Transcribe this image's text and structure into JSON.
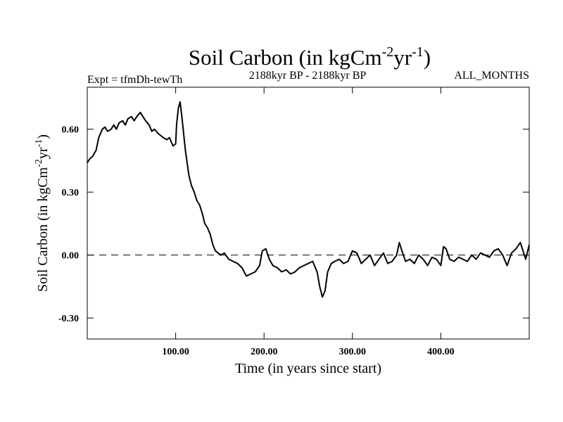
{
  "chart_data": {
    "type": "line",
    "title": "Soil Carbon (in kgCm",
    "title_sup1": "-2",
    "title_mid": "yr",
    "title_sup2": "-1",
    "title_end": ")",
    "subtitle_left": "Expt = tfmDh-tewTh",
    "subtitle_center": "2188kyr BP - 2188kyr BP",
    "subtitle_right": "ALL_MONTHS",
    "xlabel": "Time (in years since start)",
    "ylabel": "Soil Carbon (in kgCm",
    "ylabel_sup1": "-2",
    "ylabel_mid": "yr",
    "ylabel_sup2": "-1",
    "ylabel_end": ")",
    "xlim": [
      0,
      500
    ],
    "ylim": [
      -0.4,
      0.8
    ],
    "x_ticks": [
      {
        "value": 100,
        "label": "100.00"
      },
      {
        "value": 200,
        "label": "200.00"
      },
      {
        "value": 300,
        "label": "300.00"
      },
      {
        "value": 400,
        "label": "400.00"
      }
    ],
    "y_ticks": [
      {
        "value": 0.6,
        "label": "0.60"
      },
      {
        "value": 0.3,
        "label": "0.30"
      },
      {
        "value": 0.0,
        "label": "0.00"
      },
      {
        "value": -0.3,
        "label": "-0.30"
      }
    ],
    "reference_line": {
      "y": 0.0,
      "style": "dashed"
    },
    "series": [
      {
        "x": [
          0,
          3,
          6,
          10,
          13,
          17,
          20,
          23,
          27,
          30,
          33,
          36,
          40,
          43,
          46,
          50,
          53,
          56,
          60,
          63,
          66,
          70,
          73,
          76,
          80,
          83,
          86,
          90,
          93,
          97,
          100,
          101,
          103,
          105,
          107,
          109,
          111,
          113,
          115,
          118,
          121,
          124,
          127,
          130,
          133,
          136,
          139,
          142,
          145,
          148,
          151,
          155,
          160,
          165,
          170,
          175,
          180,
          185,
          190,
          195,
          198,
          202,
          206,
          210,
          215,
          220,
          225,
          230,
          235,
          240,
          245,
          250,
          255,
          260,
          263,
          266,
          269,
          272,
          276,
          280,
          285,
          290,
          295,
          300,
          305,
          310,
          315,
          320,
          325,
          330,
          335,
          340,
          345,
          350,
          353,
          356,
          360,
          365,
          370,
          375,
          380,
          385,
          390,
          395,
          400,
          403,
          406,
          410,
          415,
          420,
          425,
          430,
          435,
          440,
          445,
          450,
          455,
          460,
          465,
          470,
          475,
          480,
          485,
          490,
          493,
          496,
          500
        ],
        "values": [
          0.44,
          0.46,
          0.47,
          0.5,
          0.56,
          0.6,
          0.61,
          0.59,
          0.6,
          0.62,
          0.6,
          0.63,
          0.64,
          0.62,
          0.65,
          0.66,
          0.64,
          0.66,
          0.68,
          0.66,
          0.64,
          0.62,
          0.59,
          0.6,
          0.58,
          0.57,
          0.56,
          0.55,
          0.56,
          0.52,
          0.53,
          0.62,
          0.7,
          0.73,
          0.66,
          0.58,
          0.5,
          0.44,
          0.38,
          0.33,
          0.3,
          0.26,
          0.24,
          0.2,
          0.15,
          0.13,
          0.1,
          0.05,
          0.02,
          0.01,
          0.0,
          0.01,
          -0.02,
          -0.03,
          -0.04,
          -0.06,
          -0.1,
          -0.09,
          -0.08,
          -0.05,
          0.02,
          0.03,
          -0.02,
          -0.05,
          -0.06,
          -0.08,
          -0.07,
          -0.09,
          -0.08,
          -0.06,
          -0.05,
          -0.04,
          -0.03,
          -0.08,
          -0.15,
          -0.2,
          -0.17,
          -0.08,
          -0.04,
          -0.03,
          -0.02,
          -0.04,
          -0.03,
          0.02,
          0.01,
          -0.04,
          -0.02,
          0.0,
          -0.05,
          -0.02,
          0.01,
          -0.04,
          -0.03,
          0.0,
          0.06,
          0.02,
          -0.03,
          -0.02,
          -0.04,
          0.0,
          -0.02,
          -0.05,
          -0.01,
          -0.02,
          -0.05,
          0.04,
          0.03,
          -0.02,
          -0.03,
          -0.01,
          -0.02,
          -0.03,
          0.0,
          -0.02,
          0.01,
          0.0,
          -0.01,
          0.02,
          0.03,
          0.0,
          -0.05,
          0.01,
          0.03,
          0.06,
          0.02,
          -0.02,
          0.05
        ]
      }
    ],
    "colors": {
      "line": "#000000",
      "axes": "#000000",
      "background": "#ffffff"
    }
  }
}
